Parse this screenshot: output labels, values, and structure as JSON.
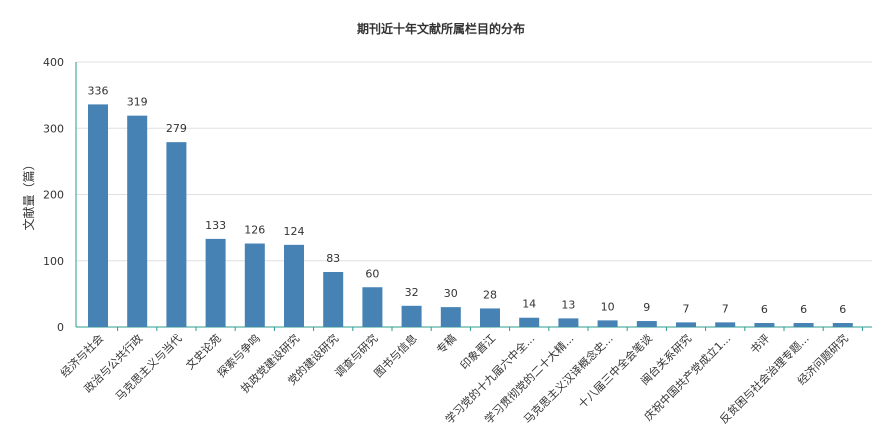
{
  "chart_data": {
    "type": "bar",
    "title": "期刊近十年文献所属栏目的分布",
    "ylabel": "文献量（篇）",
    "xlabel": "",
    "ylim": [
      0,
      400
    ],
    "yticks": [
      0,
      100,
      200,
      300,
      400
    ],
    "grid": true,
    "color": "#4682b4",
    "categories": [
      "经济与社会",
      "政治与公共行政",
      "马克思主义与当代",
      "文史论苑",
      "探索与争鸣",
      "执政党建设研究",
      "党的建设研究",
      "调查与研究",
      "图书与信息",
      "专稿",
      "印象晋江",
      "学习党的十九届六中全...",
      "学习贯彻党的二十大精...",
      "马克思主义汉译概念史...",
      "十八届三中全会笔谈",
      "闽台关系研究",
      "庆祝中国共产党成立1...",
      "书评",
      "反贫困与社会治理专题...",
      "经济问题研究"
    ],
    "values": [
      336,
      319,
      279,
      133,
      126,
      124,
      83,
      60,
      32,
      30,
      28,
      14,
      13,
      10,
      9,
      7,
      7,
      6,
      6,
      6
    ]
  }
}
